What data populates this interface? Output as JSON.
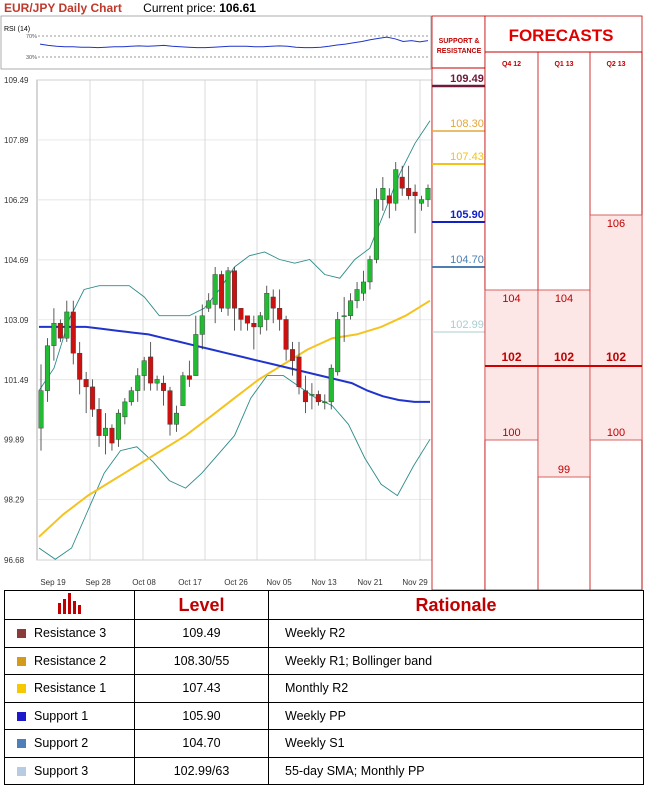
{
  "header": {
    "pair": "EUR/JPY Daily Chart",
    "price_label": "Current price:",
    "price_value": "106.61"
  },
  "rsi": {
    "label": "RSI (14)",
    "levels": [
      "70%",
      "30%"
    ]
  },
  "colors": {
    "red": "#d0021b",
    "r3": "#6e1a3a",
    "r2": "#e4a73a",
    "r1": "#f2c219",
    "s1": "#1021c8",
    "s2": "#4f7fb0",
    "s3": "#a8cdd2",
    "sma": "#2034cc",
    "sma55": "#f5c320",
    "bollinger": "#2e8b8b",
    "bull": "#22bb33",
    "bear": "#cc1111"
  },
  "chart_data": {
    "type": "candlestick",
    "y_ticks": [
      "109.49",
      "107.89",
      "106.29",
      "104.69",
      "103.09",
      "101.49",
      "99.89",
      "98.29",
      "96.68"
    ],
    "ylim": [
      96.68,
      109.49
    ],
    "x_ticks": [
      "Sep 19",
      "Sep 28",
      "Oct 08",
      "Oct 17",
      "Oct 26",
      "Nov 05",
      "Nov 13",
      "Nov 21",
      "Nov 29"
    ],
    "candles": [
      [
        100.2,
        101.9,
        99.6,
        101.2
      ],
      [
        101.2,
        102.6,
        100.9,
        102.4
      ],
      [
        102.4,
        103.4,
        102.0,
        103.0
      ],
      [
        103.0,
        103.1,
        102.5,
        102.6
      ],
      [
        102.6,
        103.6,
        102.5,
        103.3
      ],
      [
        103.3,
        103.6,
        101.9,
        102.2
      ],
      [
        102.2,
        102.5,
        101.1,
        101.5
      ],
      [
        101.5,
        101.7,
        100.6,
        101.3
      ],
      [
        101.3,
        101.5,
        100.5,
        100.7
      ],
      [
        100.7,
        101.0,
        99.7,
        100.0
      ],
      [
        100.0,
        100.6,
        99.5,
        100.2
      ],
      [
        100.2,
        100.3,
        99.6,
        99.8
      ],
      [
        99.9,
        100.7,
        99.7,
        100.6
      ],
      [
        100.5,
        101.0,
        100.3,
        100.9
      ],
      [
        100.9,
        101.3,
        100.8,
        101.2
      ],
      [
        101.2,
        101.8,
        100.9,
        101.6
      ],
      [
        101.6,
        102.1,
        101.2,
        102.0
      ],
      [
        102.1,
        102.5,
        101.2,
        101.4
      ],
      [
        101.4,
        101.6,
        101.2,
        101.5
      ],
      [
        101.4,
        101.6,
        100.8,
        101.2
      ],
      [
        101.2,
        101.3,
        100.0,
        100.3
      ],
      [
        100.3,
        100.8,
        100.1,
        100.6
      ],
      [
        100.8,
        101.7,
        100.8,
        101.6
      ],
      [
        101.6,
        102.0,
        101.3,
        101.5
      ],
      [
        101.6,
        103.2,
        101.6,
        102.7
      ],
      [
        102.7,
        103.5,
        102.3,
        103.2
      ],
      [
        103.4,
        103.8,
        103.3,
        103.6
      ],
      [
        103.5,
        104.5,
        103.0,
        104.3
      ],
      [
        104.3,
        104.4,
        103.3,
        103.4
      ],
      [
        103.4,
        104.5,
        103.2,
        104.4
      ],
      [
        104.4,
        104.5,
        102.8,
        103.4
      ],
      [
        103.4,
        103.4,
        102.8,
        103.1
      ],
      [
        103.2,
        103.2,
        102.8,
        103.0
      ],
      [
        103.0,
        103.2,
        102.3,
        102.9
      ],
      [
        102.9,
        103.3,
        102.7,
        103.2
      ],
      [
        103.1,
        104.0,
        102.8,
        103.8
      ],
      [
        103.7,
        103.9,
        103.0,
        103.4
      ],
      [
        103.4,
        103.9,
        102.8,
        103.1
      ],
      [
        103.1,
        103.2,
        102.0,
        102.3
      ],
      [
        102.3,
        102.5,
        101.6,
        102.0
      ],
      [
        102.1,
        102.5,
        101.1,
        101.3
      ],
      [
        101.2,
        101.6,
        100.6,
        100.9
      ],
      [
        101.1,
        101.4,
        100.7,
        101.1
      ],
      [
        101.1,
        101.2,
        100.8,
        100.9
      ],
      [
        100.9,
        101.1,
        100.7,
        100.9
      ],
      [
        100.9,
        101.9,
        100.7,
        101.8
      ],
      [
        101.7,
        103.3,
        101.6,
        103.1
      ],
      [
        103.2,
        103.7,
        102.5,
        103.2
      ],
      [
        103.2,
        103.8,
        103.1,
        103.6
      ],
      [
        103.6,
        104.1,
        103.4,
        103.9
      ],
      [
        103.8,
        104.4,
        103.6,
        104.1
      ],
      [
        104.1,
        104.8,
        103.9,
        104.7
      ],
      [
        104.7,
        106.6,
        104.6,
        106.3
      ],
      [
        106.3,
        106.9,
        106.0,
        106.6
      ],
      [
        106.4,
        106.6,
        105.8,
        106.2
      ],
      [
        106.2,
        107.3,
        106.0,
        107.1
      ],
      [
        106.9,
        107.2,
        106.4,
        106.6
      ],
      [
        106.6,
        107.2,
        106.3,
        106.4
      ],
      [
        106.5,
        106.7,
        105.4,
        106.4
      ],
      [
        106.2,
        106.4,
        106.0,
        106.3
      ],
      [
        106.3,
        106.7,
        106.1,
        106.6
      ]
    ],
    "sma": [
      102.9,
      102.9,
      102.9,
      102.9,
      102.85,
      102.8,
      102.75,
      102.7,
      102.6,
      102.5,
      102.4,
      102.3,
      102.2,
      102.1,
      102.0,
      101.9,
      101.8,
      101.7,
      101.6,
      101.5,
      101.4,
      101.2,
      101.05,
      100.95,
      100.9,
      100.9
    ],
    "sma55": [
      97.3,
      97.9,
      98.4,
      98.8,
      99.2,
      99.6,
      100.0,
      100.5,
      101.0,
      101.5,
      101.9,
      102.3,
      102.6,
      102.7,
      102.9,
      103.2,
      103.6
    ],
    "bb_upper": [
      101.2,
      101.8,
      103.1,
      103.9,
      104.0,
      104.0,
      104.0,
      103.7,
      103.2,
      103.2,
      103.2,
      103.4,
      103.9,
      104.5,
      104.8,
      104.9,
      104.7,
      104.6,
      104.7,
      104.3,
      104.2,
      104.7,
      105.0,
      106.0,
      107.0,
      107.8,
      108.4
    ],
    "bb_lower": [
      97.0,
      96.7,
      97.0,
      98.0,
      99.0,
      99.6,
      99.7,
      99.3,
      98.8,
      98.6,
      99.0,
      99.5,
      100.0,
      101.0,
      101.6,
      101.6,
      101.3,
      101.0,
      100.8,
      100.3,
      99.4,
      98.7,
      98.4,
      99.2,
      99.9
    ],
    "levels_panel": {
      "header": "SUPPORT & RESISTANCE",
      "r3": "109.49",
      "r2": "108.30",
      "r1": "107.43",
      "s1": "105.90",
      "s2": "104.70",
      "s3": "102.99"
    },
    "forecasts": {
      "title": "FORECASTS",
      "columns": [
        {
          "label": "Q4 12",
          "high": "104",
          "mid": "102",
          "low": "100"
        },
        {
          "label": "Q1 13",
          "high": "104",
          "mid": "102",
          "low": "99"
        },
        {
          "label": "Q2 13",
          "high": "106",
          "mid": "102",
          "low": "100"
        }
      ]
    }
  },
  "table": {
    "headers": [
      "",
      "Level",
      "Rationale"
    ],
    "rows": [
      {
        "name": "Resistance 3",
        "level": "109.49",
        "rationale": "Weekly R2",
        "color": "#8b3a3a"
      },
      {
        "name": "Resistance 2",
        "level": "108.30/55",
        "rationale": "Weekly R1; Bollinger band",
        "color": "#d49a1c"
      },
      {
        "name": "Resistance 1",
        "level": "107.43",
        "rationale": "Monthly R2",
        "color": "#f5c800"
      },
      {
        "name": "Support 1",
        "level": "105.90",
        "rationale": "Weekly PP",
        "color": "#1a1acc"
      },
      {
        "name": "Support 2",
        "level": "104.70",
        "rationale": "Weekly S1",
        "color": "#4f7fb8"
      },
      {
        "name": "Support 3",
        "level": "102.99/63",
        "rationale": "55-day SMA; Monthly PP",
        "color": "#b7cbe3"
      }
    ]
  }
}
